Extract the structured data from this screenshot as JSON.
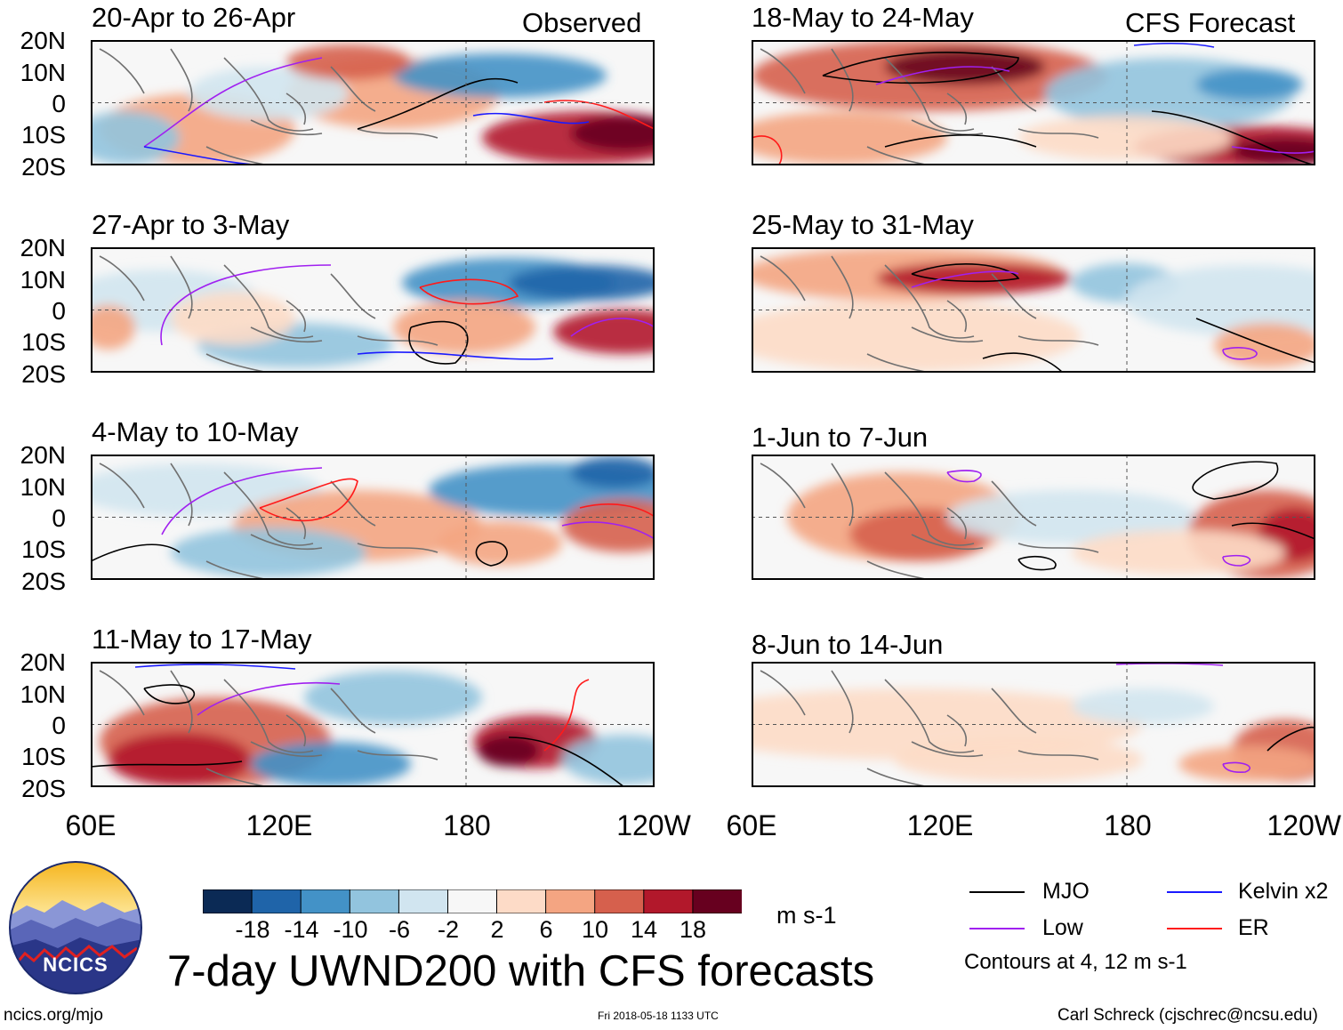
{
  "sections": {
    "left": "Observed",
    "right": "CFS Forecast"
  },
  "panels": {
    "obs": [
      "20-Apr to 26-Apr",
      "27-Apr to 3-May",
      "4-May to 10-May",
      "11-May to 17-May"
    ],
    "fcst": [
      "18-May to 24-May",
      "25-May to 31-May",
      "1-Jun to 7-Jun",
      "8-Jun to 14-Jun"
    ]
  },
  "lat_labels": [
    "20N",
    "10N",
    "0",
    "10S",
    "20S"
  ],
  "lon_labels": [
    "60E",
    "120E",
    "180",
    "120W"
  ],
  "colorbar": {
    "ticks": [
      "-18",
      "-14",
      "-10",
      "-6",
      "-2",
      "2",
      "6",
      "10",
      "14",
      "18"
    ],
    "units": "m s-1",
    "colors": [
      "#0b2a55",
      "#1f64a9",
      "#4392c7",
      "#92c4de",
      "#d1e5f0",
      "#f7f7f7",
      "#fddbc7",
      "#f4a582",
      "#d6604d",
      "#b2182b",
      "#67001f"
    ]
  },
  "legend": {
    "items": [
      {
        "label": "MJO",
        "color": "#000000"
      },
      {
        "label": "Kelvin x2",
        "color": "#1a1aff"
      },
      {
        "label": "Low",
        "color": "#a020f0"
      },
      {
        "label": "ER",
        "color": "#ff1a1a"
      }
    ],
    "note": "Contours at 4, 12 m s-1"
  },
  "main_title": "7-day UWND200 with CFS forecasts",
  "logo_text": "NCICS",
  "footer": {
    "url": "ncics.org/mjo",
    "timestamp": "Fri 2018-05-18 1133 UTC",
    "credit": "Carl Schreck (cjschrec@ncsu.edu)"
  }
}
